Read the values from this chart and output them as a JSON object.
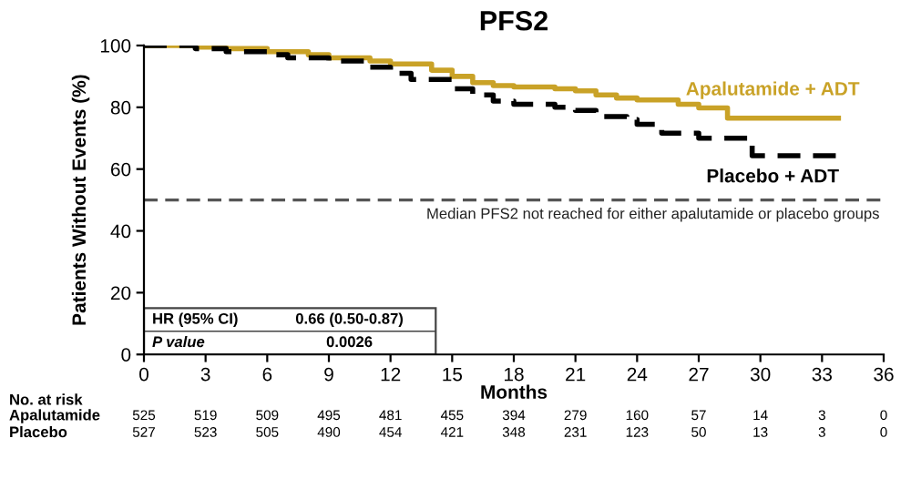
{
  "chart_data": {
    "type": "step",
    "title": "PFS2",
    "xlabel": "Months",
    "ylabel": "Patients Without Events (%)",
    "xlim": [
      0,
      36
    ],
    "ylim": [
      0,
      100
    ],
    "xticks": [
      0,
      3,
      6,
      9,
      12,
      15,
      18,
      21,
      24,
      27,
      30,
      33,
      36
    ],
    "yticks": [
      0,
      20,
      40,
      60,
      80,
      100
    ],
    "grid": false,
    "legend": false,
    "marker": "none",
    "series": [
      {
        "name": "Apalutamide + ADT",
        "color": "#c9a227",
        "line_style": "solid",
        "x": [
          0,
          2.5,
          4,
          6,
          8,
          9,
          11,
          12,
          14,
          15,
          16,
          17,
          18,
          20,
          21,
          22,
          23,
          24,
          26,
          27,
          28.4,
          33.8
        ],
        "values": [
          100,
          99.5,
          99,
          98,
          97,
          96,
          95,
          94,
          92,
          90,
          88,
          87,
          86.6,
          86,
          85.3,
          84,
          83,
          82.4,
          81,
          79.8,
          76.5,
          76.5
        ]
      },
      {
        "name": "Placebo + ADT",
        "color": "#000000",
        "line_style": "dashed",
        "x": [
          0,
          2.5,
          4,
          6,
          7,
          9,
          11,
          12,
          13,
          15,
          16,
          17,
          18,
          20,
          21,
          22,
          23.5,
          24,
          25.2,
          27,
          29.6,
          33.8
        ],
        "values": [
          100,
          99,
          98,
          97,
          96,
          95,
          93,
          91,
          89,
          86,
          84,
          82,
          81,
          80,
          79,
          77,
          76,
          74.5,
          71.6,
          70,
          64.3,
          64.3
        ]
      }
    ],
    "ref_lines": [
      {
        "axis": "y",
        "value": 50,
        "label": "Median PFS2 not reached for either apalutamide or placebo groups",
        "color": "#555555",
        "line_style": "dashed"
      }
    ],
    "annotations": [
      "HR (95% CI)",
      "0.66 (0.50-0.87)",
      "P value",
      "0.0026",
      "No. at risk",
      "Apalutamide",
      "Placebo",
      "525",
      "519",
      "509",
      "495",
      "481",
      "455",
      "394",
      "279",
      "160",
      "57",
      "14",
      "3",
      "0",
      "527",
      "523",
      "505",
      "490",
      "454",
      "421",
      "348",
      "231",
      "123",
      "50",
      "13",
      "3",
      "0"
    ]
  }
}
